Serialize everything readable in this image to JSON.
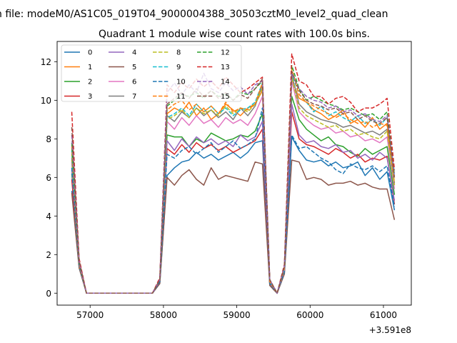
{
  "figure": {
    "suptitle": "n file: modeM0/AS1C05_019T04_9000004388_30503cztM0_level2_quad_clean"
  },
  "chart_data": {
    "type": "line",
    "title": "Quadrant 1 module wise count rates with 100.0s bins.",
    "xlabel": "",
    "ylabel": "",
    "x_offset_label": "+3.591e8",
    "xlim": [
      56550,
      61380
    ],
    "ylim": [
      -0.62,
      13.05
    ],
    "xticks": [
      57000,
      58000,
      59000,
      60000,
      61000
    ],
    "xtick_labels": [
      "57000",
      "58000",
      "59000",
      "60000",
      "61000"
    ],
    "yticks": [
      0,
      2,
      4,
      6,
      8,
      10,
      12
    ],
    "ytick_labels": [
      "0",
      "2",
      "4",
      "6",
      "8",
      "10",
      "12"
    ],
    "grid": false,
    "legend_position": "top-left",
    "legend_columns": 4,
    "x": [
      56750,
      56850,
      56950,
      57050,
      57150,
      57250,
      57350,
      57450,
      57550,
      57650,
      57750,
      57850,
      57950,
      58050,
      58150,
      58250,
      58350,
      58450,
      58550,
      58650,
      58750,
      58850,
      58950,
      59050,
      59150,
      59250,
      59350,
      59450,
      59550,
      59650,
      59750,
      59850,
      59950,
      60050,
      60150,
      60250,
      60350,
      60450,
      60550,
      60650,
      60750,
      60850,
      60950,
      61050,
      61150
    ],
    "series": [
      {
        "name": "0",
        "color": "#1f77b4",
        "dash": "solid",
        "values": [
          5.3,
          1.4,
          0,
          0,
          0,
          0,
          0,
          0,
          0,
          0,
          0,
          0,
          0.5,
          6.1,
          6.5,
          6.8,
          6.9,
          7.3,
          7.0,
          7.2,
          6.9,
          7.1,
          7.3,
          7.0,
          7.3,
          7.8,
          7.9,
          0.4,
          0,
          1.1,
          8.1,
          7.4,
          6.9,
          6.8,
          6.9,
          6.6,
          6.8,
          6.5,
          6.6,
          6.8,
          6.1,
          6.5,
          5.9,
          6.3,
          4.3
        ]
      },
      {
        "name": "1",
        "color": "#ff7f0e",
        "dash": "solid",
        "values": [
          6.9,
          1.5,
          0,
          0,
          0,
          0,
          0,
          0,
          0,
          0,
          0,
          0,
          0.7,
          9.3,
          9.6,
          9.4,
          9.9,
          9.2,
          9.6,
          9.0,
          9.3,
          9.8,
          9.5,
          9.2,
          9.6,
          9.8,
          10.5,
          0.6,
          0,
          1.3,
          11.1,
          10.1,
          9.9,
          9.5,
          9.3,
          9.0,
          9.2,
          9.5,
          8.8,
          9.0,
          8.6,
          9.1,
          8.5,
          8.8,
          5.7
        ]
      },
      {
        "name": "2",
        "color": "#2ca02c",
        "dash": "solid",
        "values": [
          6.2,
          1.4,
          0,
          0,
          0,
          0,
          0,
          0,
          0,
          0,
          0,
          0,
          0.6,
          8.2,
          8.1,
          8.1,
          7.6,
          8.0,
          7.8,
          8.3,
          8.1,
          7.9,
          8.0,
          8.2,
          8.1,
          8.4,
          9.3,
          0.5,
          0,
          1.2,
          10.2,
          9.0,
          8.5,
          8.2,
          7.9,
          8.1,
          7.7,
          7.6,
          7.3,
          7.1,
          7.5,
          7.2,
          7.4,
          7.6,
          5.1
        ]
      },
      {
        "name": "3",
        "color": "#d62728",
        "dash": "solid",
        "values": [
          5.9,
          1.4,
          0,
          0,
          0,
          0,
          0,
          0,
          0,
          0,
          0,
          0,
          0.6,
          7.5,
          7.2,
          7.7,
          7.3,
          7.8,
          7.5,
          7.7,
          7.4,
          7.6,
          7.3,
          7.5,
          7.7,
          7.9,
          8.5,
          0.5,
          0,
          1.1,
          9.4,
          8.0,
          7.7,
          7.6,
          7.4,
          7.2,
          7.5,
          7.3,
          7.0,
          7.2,
          6.8,
          7.0,
          6.9,
          7.1,
          4.6
        ]
      },
      {
        "name": "4",
        "color": "#9467bd",
        "dash": "solid",
        "values": [
          6.4,
          1.4,
          0,
          0,
          0,
          0,
          0,
          0,
          0,
          0,
          0,
          0,
          0.6,
          7.9,
          7.4,
          8.0,
          7.6,
          8.1,
          7.8,
          8.0,
          7.7,
          7.9,
          7.6,
          8.2,
          7.9,
          8.1,
          8.9,
          0.5,
          0,
          1.1,
          9.8,
          8.2,
          7.8,
          7.9,
          7.6,
          7.5,
          7.7,
          7.3,
          7.4,
          7.0,
          7.2,
          6.9,
          7.3,
          7.0,
          4.8
        ]
      },
      {
        "name": "5",
        "color": "#8c564b",
        "dash": "solid",
        "values": [
          5.2,
          1.3,
          0,
          0,
          0,
          0,
          0,
          0,
          0,
          0,
          0,
          0,
          0.5,
          6.0,
          5.6,
          6.1,
          6.4,
          5.9,
          5.6,
          6.5,
          5.9,
          6.1,
          6.0,
          5.9,
          5.8,
          6.8,
          6.7,
          0.4,
          0,
          1.0,
          6.9,
          6.8,
          5.9,
          6.0,
          5.9,
          5.6,
          5.7,
          5.7,
          5.8,
          5.6,
          5.7,
          5.5,
          5.4,
          5.4,
          3.8
        ]
      },
      {
        "name": "6",
        "color": "#e377c2",
        "dash": "solid",
        "values": [
          6.8,
          1.5,
          0,
          0,
          0,
          0,
          0,
          0,
          0,
          0,
          0,
          0,
          0.7,
          8.9,
          8.5,
          9.1,
          8.7,
          9.2,
          8.8,
          9.0,
          8.6,
          9.1,
          8.8,
          9.0,
          8.7,
          9.3,
          10.2,
          0.6,
          0,
          1.2,
          11.0,
          9.4,
          9.0,
          8.7,
          8.5,
          8.6,
          8.3,
          8.4,
          8.1,
          8.2,
          7.9,
          8.0,
          7.8,
          8.1,
          5.4
        ]
      },
      {
        "name": "7",
        "color": "#7f7f7f",
        "dash": "solid",
        "values": [
          7.0,
          1.5,
          0,
          0,
          0,
          0,
          0,
          0,
          0,
          0,
          0,
          0,
          0.7,
          9.2,
          8.9,
          9.4,
          9.1,
          9.6,
          9.2,
          9.5,
          9.1,
          9.4,
          9.0,
          9.6,
          9.2,
          9.7,
          10.8,
          0.6,
          0,
          1.3,
          11.3,
          9.8,
          9.4,
          9.2,
          9.0,
          8.9,
          8.8,
          8.6,
          8.7,
          8.5,
          8.3,
          8.4,
          8.2,
          8.5,
          5.6
        ]
      },
      {
        "name": "8",
        "color": "#bcbd22",
        "dash": "dashed",
        "values": [
          7.2,
          1.5,
          0,
          0,
          0,
          0,
          0,
          0,
          0,
          0,
          0,
          0,
          0.7,
          9.0,
          9.2,
          9.5,
          9.1,
          9.6,
          9.3,
          9.5,
          9.2,
          9.7,
          9.3,
          9.6,
          9.4,
          9.8,
          10.6,
          0.6,
          0,
          1.3,
          11.2,
          9.6,
          9.2,
          9.0,
          8.8,
          8.6,
          8.7,
          8.4,
          8.5,
          8.2,
          8.3,
          8.1,
          8.0,
          8.4,
          5.6
        ]
      },
      {
        "name": "9",
        "color": "#17becf",
        "dash": "dashed",
        "values": [
          7.4,
          1.5,
          0,
          0,
          0,
          0,
          0,
          0,
          0,
          0,
          0,
          0,
          0.7,
          9.1,
          9.3,
          9.6,
          9.2,
          9.8,
          9.4,
          9.7,
          9.3,
          9.6,
          9.2,
          9.5,
          9.6,
          9.9,
          10.9,
          0.6,
          0,
          1.3,
          11.4,
          10.3,
          9.9,
          9.4,
          9.7,
          9.2,
          9.4,
          9.1,
          8.9,
          9.2,
          8.8,
          9.0,
          8.7,
          9.1,
          6.2
        ]
      },
      {
        "name": "10",
        "color": "#1f77b4",
        "dash": "dashed",
        "values": [
          6.5,
          1.4,
          0,
          0,
          0,
          0,
          0,
          0,
          0,
          0,
          0,
          0,
          0.6,
          7.2,
          7.0,
          7.4,
          7.6,
          7.2,
          7.5,
          7.8,
          7.3,
          7.6,
          7.9,
          7.5,
          7.7,
          8.0,
          9.6,
          0.5,
          0,
          1.1,
          8.2,
          7.5,
          7.6,
          7.3,
          7.0,
          6.8,
          6.4,
          6.2,
          6.7,
          6.5,
          6.4,
          6.6,
          6.3,
          6.6,
          4.5
        ]
      },
      {
        "name": "11",
        "color": "#ff7f0e",
        "dash": "dashed",
        "values": [
          7.6,
          1.5,
          0,
          0,
          0,
          0,
          0,
          0,
          0,
          0,
          0,
          0,
          0.7,
          9.5,
          9.8,
          10.0,
          9.5,
          9.8,
          9.4,
          9.7,
          9.3,
          9.9,
          9.4,
          9.6,
          9.5,
          9.8,
          10.9,
          0.6,
          0,
          1.3,
          11.6,
          10.3,
          9.9,
          9.7,
          9.5,
          9.3,
          9.1,
          9.3,
          9.0,
          8.8,
          8.9,
          8.6,
          8.8,
          8.7,
          5.9
        ]
      },
      {
        "name": "12",
        "color": "#2ca02c",
        "dash": "dashed",
        "values": [
          7.8,
          1.6,
          0,
          0,
          0,
          0,
          0,
          0,
          0,
          0,
          0,
          0,
          0.7,
          9.7,
          10.0,
          10.3,
          10.2,
          10.4,
          10.1,
          10.5,
          10.2,
          10.3,
          10.0,
          10.4,
          10.3,
          10.6,
          11.0,
          0.7,
          0,
          1.4,
          11.8,
          10.6,
          10.0,
          10.2,
          10.0,
          9.8,
          9.7,
          9.5,
          9.6,
          9.4,
          9.2,
          9.3,
          9.0,
          9.4,
          6.1
        ]
      },
      {
        "name": "13",
        "color": "#d62728",
        "dash": "dashed",
        "values": [
          9.4,
          1.8,
          0,
          0,
          0,
          0,
          0,
          0,
          0,
          0,
          0,
          0,
          0.8,
          10.8,
          10.4,
          10.9,
          10.6,
          11.1,
          10.7,
          11.0,
          10.6,
          11.2,
          10.8,
          10.4,
          10.6,
          10.9,
          11.2,
          0.7,
          0,
          1.5,
          12.4,
          11.0,
          10.8,
          10.2,
          10.2,
          9.8,
          10.1,
          10.2,
          9.9,
          9.4,
          9.6,
          9.6,
          9.8,
          10.1,
          6.4
        ]
      },
      {
        "name": "14",
        "color": "#9467bd",
        "dash": "dashed",
        "values": [
          8.2,
          1.6,
          0,
          0,
          0,
          0,
          0,
          0,
          0,
          0,
          0,
          0,
          0.7,
          10.4,
          10.9,
          10.3,
          10.8,
          10.4,
          11.4,
          10.6,
          10.4,
          10.9,
          10.5,
          10.7,
          10.3,
          10.8,
          11.0,
          0.7,
          0,
          1.4,
          11.4,
          10.6,
          10.2,
          10.0,
          9.9,
          9.6,
          9.7,
          9.4,
          9.5,
          9.2,
          9.3,
          9.0,
          8.9,
          9.2,
          6.0
        ]
      },
      {
        "name": "15",
        "color": "#8c564b",
        "dash": "dashed",
        "values": [
          8.6,
          1.7,
          0,
          0,
          0,
          0,
          0,
          0,
          0,
          0,
          0,
          0,
          0.7,
          9.8,
          10.1,
          10.4,
          10.1,
          10.6,
          10.2,
          10.5,
          10.1,
          10.4,
          10.0,
          10.3,
          10.1,
          10.6,
          11.1,
          0.7,
          0,
          1.4,
          11.5,
          10.5,
          10.0,
          9.8,
          9.7,
          9.5,
          9.6,
          9.3,
          9.4,
          9.0,
          9.2,
          8.9,
          8.8,
          9.1,
          6.0
        ]
      }
    ]
  }
}
